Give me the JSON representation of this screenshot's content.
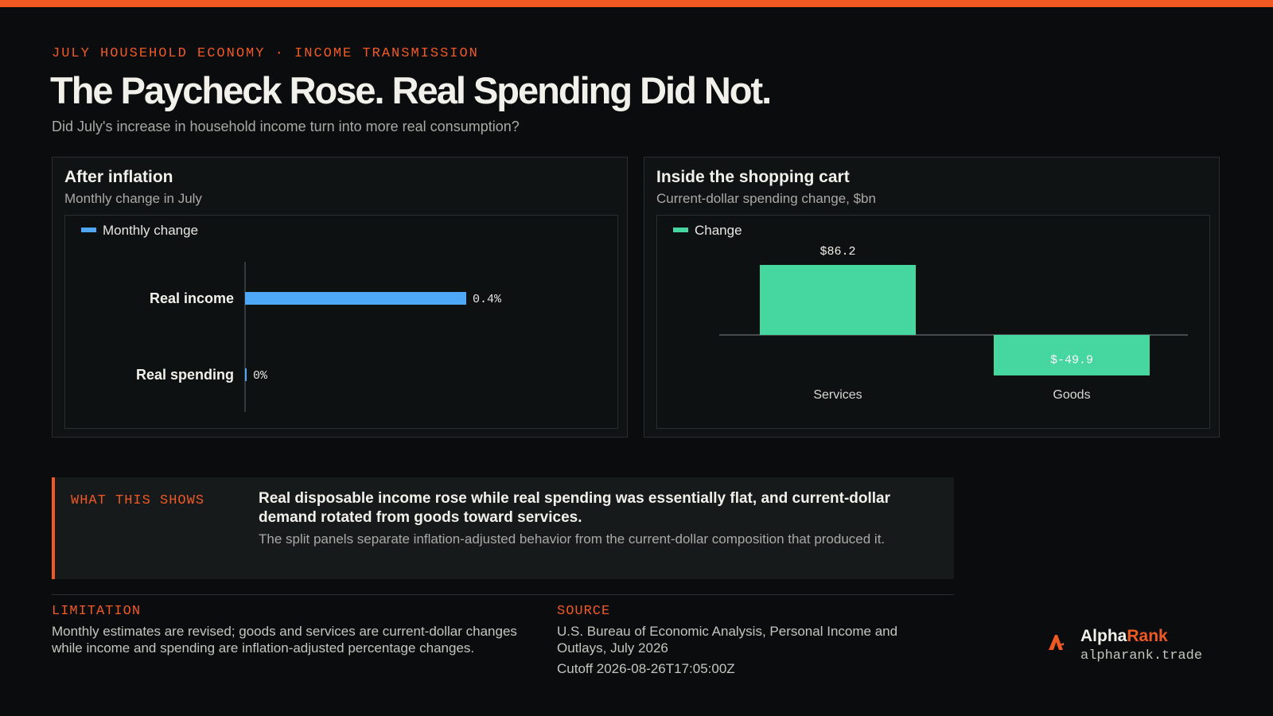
{
  "header": {
    "eyebrow": "JULY HOUSEHOLD ECONOMY · INCOME TRANSMISSION",
    "title": "The Paycheck Rose. Real Spending Did Not.",
    "subtitle": "Did July's increase in household income turn into more real consumption?"
  },
  "panels": {
    "left": {
      "title": "After inflation",
      "subtitle": "Monthly change in July"
    },
    "right": {
      "title": "Inside the shopping cart",
      "subtitle": "Current-dollar spending change, $bn"
    }
  },
  "chart_data": [
    {
      "type": "bar",
      "orientation": "horizontal",
      "title": "After inflation",
      "subtitle": "Monthly change in July",
      "categories": [
        "Real income",
        "Real spending"
      ],
      "series": [
        {
          "name": "Monthly change",
          "values": [
            0.4,
            0
          ],
          "labels": [
            "0.4%",
            "0%"
          ]
        }
      ],
      "legend": "top-left",
      "color": "#4ea8f7",
      "xlim": [
        0,
        0.6
      ],
      "grid": false
    },
    {
      "type": "bar",
      "orientation": "vertical",
      "title": "Inside the shopping cart",
      "subtitle": "Current-dollar spending change, $bn",
      "categories": [
        "Services",
        "Goods"
      ],
      "series": [
        {
          "name": "Change",
          "values": [
            86.2,
            -49.9
          ],
          "labels": [
            "$86.2",
            "$-49.9"
          ]
        }
      ],
      "legend": "top-left",
      "color": "#46d6a0",
      "ylim": [
        -80,
        120
      ],
      "grid": false
    }
  ],
  "callout": {
    "label": "WHAT THIS SHOWS",
    "headline": "Real disposable income rose while real spending was essentially flat, and current-dollar demand rotated from goods toward services.",
    "body": "The split panels separate inflation-adjusted behavior from the current-dollar composition that produced it."
  },
  "limitation": {
    "label": "LIMITATION",
    "text": "Monthly estimates are revised; goods and services are current-dollar changes while income and spending are inflation-adjusted percentage changes."
  },
  "source": {
    "label": "SOURCE",
    "text": "U.S. Bureau of Economic Analysis, Personal Income and Outlays, July 2026",
    "cutoff": "Cutoff 2026-08-26T17:05:00Z"
  },
  "brand": {
    "name_a": "Alpha",
    "name_b": "Rank",
    "url": "alpharank.trade",
    "logo_icon": "alpharank-logo-icon"
  },
  "colors": {
    "accent": "#f05a22",
    "bar_blue": "#4ea8f7",
    "bar_green": "#46d6a0"
  }
}
